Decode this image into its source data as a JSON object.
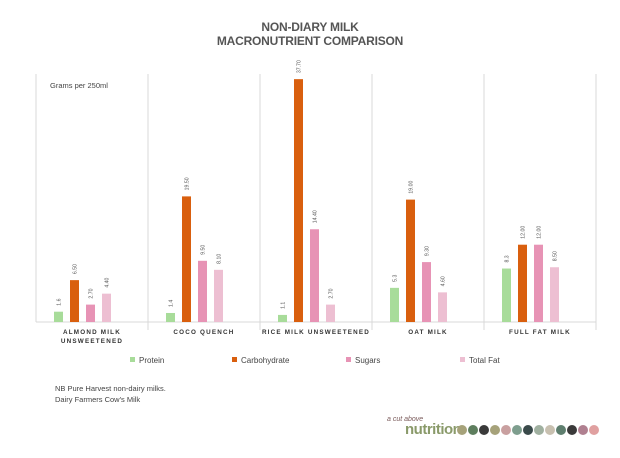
{
  "chart_data": {
    "type": "bar",
    "title": "NON-DIARY MILK",
    "subtitle": "MACRONUTRIENT COMPARISON",
    "unit_label": "Grams per 250ml",
    "categories": [
      "ALMOND MILK UNSWEETENED",
      "COCO QUENCH",
      "RICE MILK UNSWEETENED",
      "OAT MILK",
      "FULL FAT MILK"
    ],
    "category_lines": [
      [
        "ALMOND MILK",
        "UNSWEETENED"
      ],
      [
        "COCO QUENCH"
      ],
      [
        "RICE MILK UNSWEETENED"
      ],
      [
        "OAT MILK"
      ],
      [
        "FULL FAT MILK"
      ]
    ],
    "series": [
      {
        "name": "Protein",
        "color": "#a8dc9a",
        "values": [
          1.6,
          1.4,
          1.1,
          5.3,
          8.3
        ],
        "labels": [
          "1.6",
          "1.4",
          "1.1",
          "5.3",
          "8.3"
        ]
      },
      {
        "name": "Carbohydrate",
        "color": "#d95f0e",
        "values": [
          6.5,
          19.5,
          37.7,
          19.0,
          12.0
        ],
        "labels": [
          "6.50",
          "19.50",
          "37.70",
          "19.00",
          "12.00"
        ]
      },
      {
        "name": "Sugars",
        "color": "#e793b5",
        "values": [
          2.7,
          9.5,
          14.4,
          9.3,
          12.0
        ],
        "labels": [
          "2.70",
          "9.50",
          "14.40",
          "9.30",
          "12.00"
        ]
      },
      {
        "name": "Total Fat",
        "color": "#edbfd2",
        "values": [
          4.4,
          8.1,
          2.7,
          4.6,
          8.5
        ],
        "labels": [
          "4.40",
          "8.10",
          "2.70",
          "4.60",
          "8.50"
        ]
      }
    ],
    "ylim": [
      0,
      38.5
    ],
    "grid": false,
    "legend_position": "bottom"
  },
  "notes": [
    "NB Pure Harvest non-dairy milks.",
    "Dairy Farmers Cow's Milk"
  ],
  "logo": {
    "small_text": "a cut above",
    "big_text": "nutrition",
    "dot_colors": [
      "#a6a27a",
      "#5e7e5e",
      "#3a3a3a",
      "#a6a27a",
      "#c9a0a0",
      "#7e9e8e",
      "#3a4a4a",
      "#a0b0a0",
      "#c8c0b0",
      "#5e7e6e",
      "#3a3a3a",
      "#b08090",
      "#e0a0a0"
    ]
  }
}
